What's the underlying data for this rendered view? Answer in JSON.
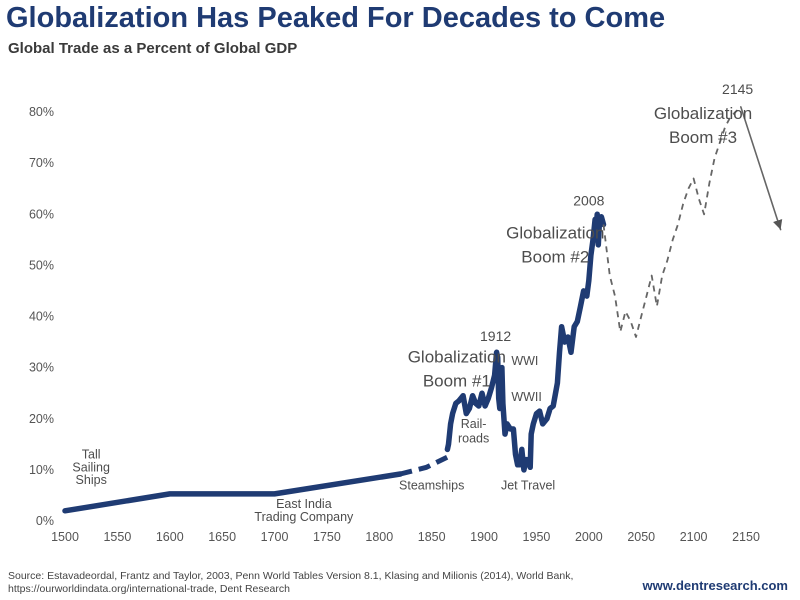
{
  "header": {
    "title": "Globalization Has Peaked For Decades to Come",
    "subtitle": "Global Trade as a Percent of Global GDP"
  },
  "colors": {
    "historical_line": "#1f3b73",
    "projection_line": "#666666",
    "text": "#4d4d4d"
  },
  "chart_data": {
    "type": "line",
    "title": "Globalization Has Peaked For Decades to Come",
    "subtitle": "Global Trade as a Percent of Global GDP",
    "xlabel": "",
    "ylabel": "",
    "xlim": [
      1500,
      2185
    ],
    "ylim": [
      0,
      85
    ],
    "x_ticks": [
      1500,
      1550,
      1600,
      1650,
      1700,
      1750,
      1800,
      1850,
      1900,
      1950,
      2000,
      2050,
      2100,
      2150
    ],
    "x_tick_labels": [
      "1500",
      "1550",
      "1600",
      "1650",
      "1700",
      "1750",
      "1800",
      "1850",
      "1900",
      "1950",
      "2000",
      "2050",
      "2100",
      "2150"
    ],
    "y_ticks": [
      0,
      10,
      20,
      30,
      40,
      50,
      60,
      70,
      80
    ],
    "y_tick_labels": [
      "0%",
      "10%",
      "20%",
      "30%",
      "40%",
      "50%",
      "60%",
      "70%",
      "80%"
    ],
    "grid": false,
    "series": [
      {
        "style": "solid-thick",
        "x": [
          1500,
          1600,
          1700,
          1820
        ],
        "y": [
          2,
          5.3,
          5.3,
          9.2
        ]
      },
      {
        "style": "dashed-thick",
        "x": [
          1820,
          1845,
          1865
        ],
        "y": [
          9.2,
          10.5,
          12.5
        ]
      },
      {
        "style": "solid-thick",
        "x": [
          1865,
          1866,
          1868,
          1870,
          1873,
          1876,
          1880,
          1883,
          1886,
          1889,
          1892,
          1895,
          1898,
          1901,
          1904,
          1907,
          1910,
          1912,
          1913,
          1914,
          1915,
          1916,
          1917,
          1918,
          1920,
          1922,
          1925,
          1928,
          1930,
          1932,
          1934,
          1936,
          1938,
          1940,
          1942,
          1944,
          1945,
          1947,
          1950,
          1953,
          1956,
          1960,
          1963,
          1966,
          1970,
          1972,
          1974,
          1977,
          1980,
          1983,
          1986,
          1989,
          1992,
          1995,
          1998,
          2000,
          2002,
          2004,
          2006,
          2007,
          2008,
          2009,
          2010,
          2012,
          2014
        ],
        "y": [
          14,
          15,
          19,
          21,
          23,
          23.5,
          24.5,
          21,
          22,
          24.5,
          23,
          22.5,
          25,
          22.5,
          24,
          26,
          28.5,
          33,
          32,
          24,
          22,
          29,
          30,
          23,
          17,
          19,
          18,
          18,
          13,
          11,
          11,
          14,
          10,
          12,
          12,
          10.5,
          17,
          19,
          21,
          21.5,
          19,
          20,
          22,
          22.5,
          27,
          33,
          38,
          35,
          36,
          33,
          38,
          39,
          42,
          45,
          44,
          47,
          52,
          55,
          59,
          57,
          60,
          54,
          58,
          59.5,
          58
        ]
      },
      {
        "style": "dashed-thin",
        "x": [
          2014,
          2020,
          2025,
          2030,
          2035,
          2040,
          2045,
          2050,
          2055,
          2060,
          2065,
          2070,
          2075,
          2080,
          2085,
          2090,
          2095,
          2100,
          2105,
          2110,
          2115,
          2120,
          2125,
          2130,
          2135,
          2140,
          2145
        ],
        "y": [
          58,
          48,
          44,
          37,
          41,
          39,
          36,
          40,
          44,
          48,
          42,
          48,
          51,
          55,
          58,
          62,
          65,
          67,
          63,
          60,
          66,
          71,
          74,
          77,
          79,
          80,
          81
        ]
      },
      {
        "style": "arrow",
        "x": [
          2145,
          2183
        ],
        "y": [
          81,
          57
        ]
      }
    ],
    "annotations": [
      {
        "text": "Tall",
        "x": 1525,
        "y": 12.2,
        "size": 12.5,
        "anchor": "middle"
      },
      {
        "text": "Sailing",
        "x": 1525,
        "y": 9.7,
        "size": 12.5,
        "anchor": "middle"
      },
      {
        "text": "Ships",
        "x": 1525,
        "y": 7.2,
        "size": 12.5,
        "anchor": "middle"
      },
      {
        "text": "East India",
        "x": 1728,
        "y": 2.5,
        "size": 12.5,
        "anchor": "middle"
      },
      {
        "text": "Trading Company",
        "x": 1728,
        "y": 0,
        "size": 12.5,
        "anchor": "middle"
      },
      {
        "text": "Steamships",
        "x": 1850,
        "y": 6.2,
        "size": 12.5,
        "anchor": "middle"
      },
      {
        "text": "Globalization",
        "x": 1874,
        "y": 31,
        "size": 17,
        "anchor": "middle"
      },
      {
        "text": "Boom #1",
        "x": 1874,
        "y": 26.3,
        "size": 17,
        "anchor": "middle"
      },
      {
        "text": "1912",
        "x": 1911,
        "y": 35.2,
        "size": 14,
        "anchor": "middle"
      },
      {
        "text": "WWI",
        "x": 1926,
        "y": 30.5,
        "size": 12.5,
        "anchor": "start"
      },
      {
        "text": "WWII",
        "x": 1926,
        "y": 23.5,
        "size": 12.5,
        "anchor": "start"
      },
      {
        "text": "Rail-",
        "x": 1890,
        "y": 18.2,
        "size": 12.5,
        "anchor": "middle"
      },
      {
        "text": "roads",
        "x": 1890,
        "y": 15.4,
        "size": 12.5,
        "anchor": "middle"
      },
      {
        "text": "Jet Travel",
        "x": 1942,
        "y": 6.2,
        "size": 12.5,
        "anchor": "middle"
      },
      {
        "text": "Globalization",
        "x": 1968,
        "y": 55.3,
        "size": 17,
        "anchor": "middle"
      },
      {
        "text": "Boom #2",
        "x": 1968,
        "y": 50.6,
        "size": 17,
        "anchor": "middle"
      },
      {
        "text": "2008",
        "x": 2000,
        "y": 61.7,
        "size": 14,
        "anchor": "middle"
      },
      {
        "text": "Globalization",
        "x": 2109,
        "y": 78.6,
        "size": 17,
        "anchor": "middle"
      },
      {
        "text": "Boom #3",
        "x": 2109,
        "y": 73.9,
        "size": 17,
        "anchor": "middle"
      },
      {
        "text": "2145",
        "x": 2142,
        "y": 83.5,
        "size": 14,
        "anchor": "middle"
      }
    ]
  },
  "footer": {
    "source_line1": "Source: Estavadeordal, Frantz and Taylor, 2003, Penn World Tables Version 8.1, Klasing and Milionis (2014), World Bank,",
    "source_line2": "https://ourworldindata.org/international-trade, Dent Research",
    "website": "www.dentresearch.com"
  }
}
